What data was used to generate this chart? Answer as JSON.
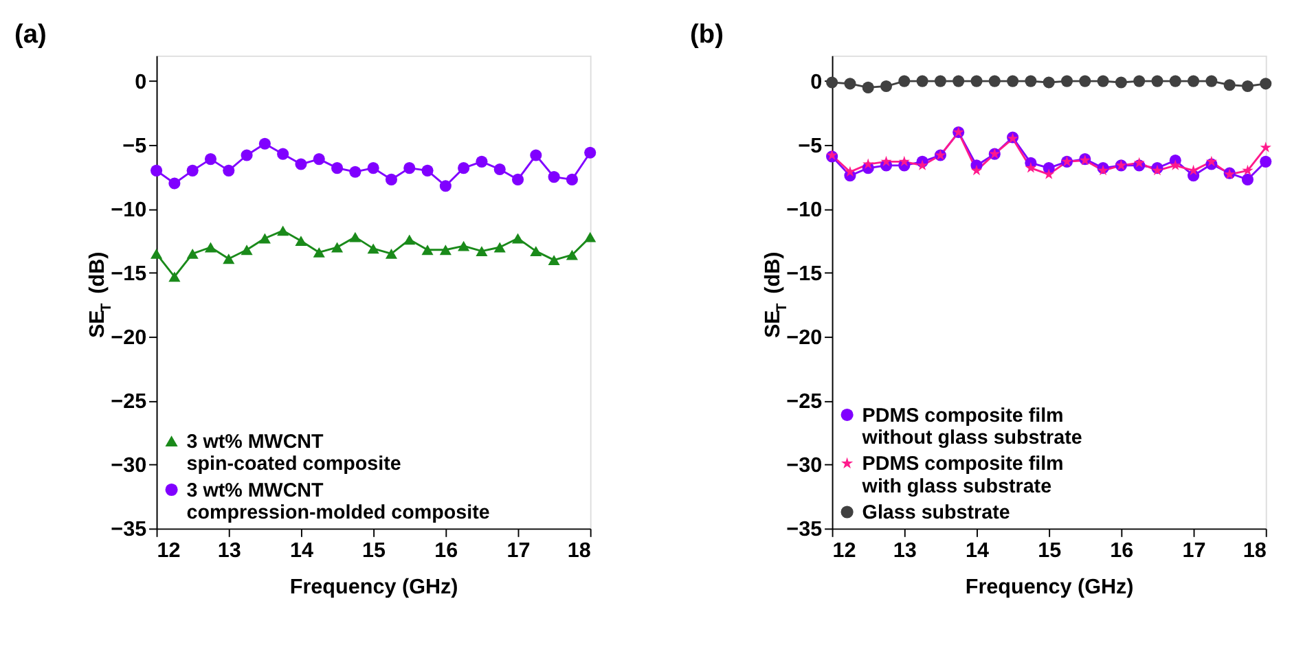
{
  "chart_data": [
    {
      "type": "line",
      "title": "(a)",
      "xlabel": "Frequency (GHz)",
      "ylabel": "SE$_{T}$ (dB)",
      "xlim": [
        12,
        18
      ],
      "xticks": [
        12,
        13,
        14,
        15,
        16,
        17,
        18
      ],
      "ylim": [
        -35,
        2
      ],
      "yticks": [
        0,
        -5,
        -10,
        -15,
        -20,
        -25,
        -30,
        -35
      ],
      "grid": false,
      "legend": "bottom left",
      "x": [
        12,
        12.25,
        12.5,
        12.75,
        13,
        13.25,
        13.5,
        13.75,
        14,
        14.25,
        14.5,
        14.75,
        15,
        15.25,
        15.5,
        15.75,
        16,
        16.25,
        16.5,
        16.75,
        17,
        17.25,
        17.5,
        17.75,
        18
      ],
      "series": [
        {
          "name": "3 wt% MWCNT\nspin-coated composite",
          "color": "#1a8a1a",
          "marker": "triangle",
          "values": [
            -13.5,
            -15.3,
            -13.5,
            -13.0,
            -13.9,
            -13.2,
            -12.3,
            -11.7,
            -12.5,
            -13.4,
            -13.0,
            -12.2,
            -13.1,
            -13.5,
            -12.4,
            -13.2,
            -13.2,
            -12.9,
            -13.3,
            -13.0,
            -12.3,
            -13.3,
            -14.0,
            -13.6,
            -12.2
          ]
        },
        {
          "name": "3 wt% MWCNT\ncompression-molded composite",
          "color": "#8000ff",
          "marker": "circle",
          "values": [
            -7.0,
            -8.0,
            -7.0,
            -6.1,
            -7.0,
            -5.8,
            -4.9,
            -5.7,
            -6.5,
            -6.1,
            -6.8,
            -7.1,
            -6.8,
            -7.7,
            -6.8,
            -7.0,
            -8.2,
            -6.8,
            -6.3,
            -6.9,
            -7.7,
            -5.8,
            -7.5,
            -7.7,
            -5.6
          ]
        }
      ]
    },
    {
      "type": "line",
      "title": "(b)",
      "xlabel": "Frequency (GHz)",
      "ylabel": "SE$_{T}$ (dB)",
      "xlim": [
        12,
        18
      ],
      "xticks": [
        12,
        13,
        14,
        15,
        16,
        17,
        18
      ],
      "ylim": [
        -35,
        2
      ],
      "yticks": [
        0,
        -5,
        -10,
        -15,
        -20,
        -25,
        -30,
        -35
      ],
      "grid": false,
      "legend": "bottom left",
      "x": [
        12,
        12.25,
        12.5,
        12.75,
        13,
        13.25,
        13.5,
        13.75,
        14,
        14.25,
        14.5,
        14.75,
        15,
        15.25,
        15.5,
        15.75,
        16,
        16.25,
        16.5,
        16.75,
        17,
        17.25,
        17.5,
        17.75,
        18
      ],
      "series": [
        {
          "name": "PDMS composite film\nwithout glass substrate",
          "color": "#8000ff",
          "marker": "circle",
          "values": [
            -5.9,
            -7.4,
            -6.8,
            -6.6,
            -6.6,
            -6.3,
            -5.8,
            -4.0,
            -6.6,
            -5.7,
            -4.4,
            -6.4,
            -6.8,
            -6.3,
            -6.1,
            -6.8,
            -6.6,
            -6.6,
            -6.8,
            -6.2,
            -7.4,
            -6.5,
            -7.2,
            -7.7,
            -6.3
          ]
        },
        {
          "name": "PDMS composite film\nwith glass substrate",
          "color": "#ff1a8c",
          "marker": "star",
          "values": [
            -5.8,
            -7.1,
            -6.5,
            -6.3,
            -6.3,
            -6.6,
            -5.8,
            -4.0,
            -7.0,
            -5.7,
            -4.5,
            -6.8,
            -7.3,
            -6.3,
            -6.2,
            -7.0,
            -6.6,
            -6.4,
            -7.0,
            -6.6,
            -7.0,
            -6.3,
            -7.3,
            -7.0,
            -5.2
          ]
        },
        {
          "name": "Glass substrate",
          "color": "#404040",
          "marker": "circle",
          "values": [
            -0.1,
            -0.2,
            -0.5,
            -0.4,
            0,
            0,
            0,
            0,
            0,
            0,
            0,
            0,
            -0.1,
            0,
            0,
            0,
            -0.1,
            0,
            0,
            0,
            0,
            0,
            -0.3,
            -0.4,
            -0.2
          ]
        }
      ]
    }
  ]
}
